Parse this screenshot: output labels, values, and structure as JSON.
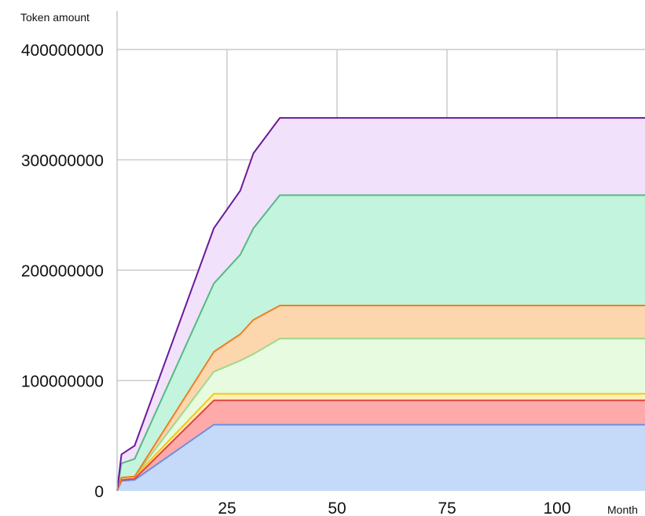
{
  "chart_data": {
    "type": "area",
    "stacked": true,
    "title": "",
    "xlabel": "Month",
    "ylabel": "Token amount",
    "xlim": [
      0,
      120
    ],
    "ylim": [
      0,
      400000000
    ],
    "x_ticks": [
      "25",
      "50",
      "75",
      "100"
    ],
    "x_tick_values": [
      25,
      50,
      75,
      100
    ],
    "y_ticks": [
      "0",
      "100000000",
      "200000000",
      "300000000",
      "400000000"
    ],
    "y_tick_values": [
      0,
      100000000,
      200000000,
      300000000,
      400000000
    ],
    "grid": true,
    "x": [
      0,
      1,
      4,
      22,
      28,
      31,
      37,
      120
    ],
    "series": [
      {
        "line": "#6f8fe0",
        "fill": "#c5d9f8",
        "values": [
          0,
          9000000,
          10000000,
          60000000,
          60000000,
          60000000,
          60000000,
          60000000
        ]
      },
      {
        "line": "#e0463c",
        "fill": "#ffaaaa",
        "values": [
          0,
          1000000,
          1000000,
          22000000,
          22000000,
          22000000,
          22000000,
          22000000
        ]
      },
      {
        "line": "#f5c518",
        "fill": "#fdf1b8",
        "values": [
          0,
          2000000,
          2000000,
          6000000,
          6000000,
          6000000,
          6000000,
          6000000
        ]
      },
      {
        "line": "#9ed98a",
        "fill": "#e6fbdf",
        "values": [
          0,
          0,
          0,
          20000000,
          30000000,
          36000000,
          50000000,
          50000000
        ]
      },
      {
        "line": "#f07e24",
        "fill": "#fcd6ad",
        "values": [
          0,
          0,
          0,
          18000000,
          24000000,
          31000000,
          30000000,
          30000000
        ]
      },
      {
        "line": "#57b884",
        "fill": "#c3f4dd",
        "values": [
          0,
          13000000,
          16000000,
          62000000,
          72000000,
          83000000,
          100000000,
          100000000
        ]
      },
      {
        "line": "#6a1b9a",
        "fill": "#f2e1fb",
        "values": [
          0,
          8000000,
          12000000,
          50000000,
          58000000,
          68000000,
          70000000,
          70000000
        ]
      }
    ]
  }
}
